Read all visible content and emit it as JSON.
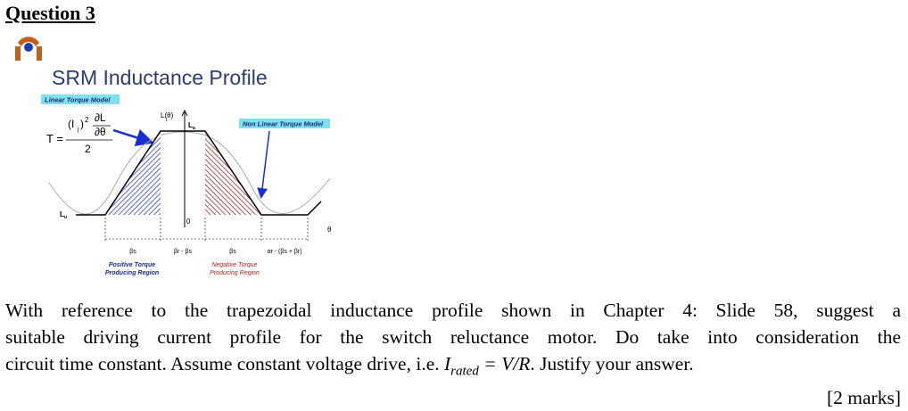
{
  "header": {
    "title": "Question 3"
  },
  "slide": {
    "title": "SRM Inductance Profile",
    "linear_label": "Linear Torque Model",
    "nonlinear_label": "Non Linear Torque Model",
    "formula": {
      "lhs": "T =",
      "numerator_current": "(I",
      "current_sub": "j",
      "current_close": ")",
      "power": "2",
      "partial_top": "∂L",
      "partial_bottom": "∂θ",
      "denominator": "2"
    },
    "axis_label": "L(θ)",
    "axis_sub": "j",
    "la": "L",
    "la_sub": "a",
    "lu": "L",
    "lu_sub": "u",
    "origin": "0",
    "theta": "θ",
    "dims": [
      "βs",
      "βr - βs",
      "βs",
      "αr - (βs + βr)"
    ],
    "positive_region": [
      "Positive Torque",
      "Producing Region"
    ],
    "negative_region": [
      "Negative Torque",
      "Producing Region"
    ]
  },
  "question": {
    "lines": [
      "With reference to the trapezoidal inductance profile shown in Chapter 4: Slide 58, suggest a",
      "suitable driving current profile for the switch reluctance motor. Do take into consideration the"
    ],
    "line3_start": "circuit time constant. Assume constant voltage drive, i.e. ",
    "math_symbol": "I",
    "math_sub": "rated",
    "math_rest": " = V/R",
    "line3_end": ". Justify your answer.",
    "marks": "[2 marks]"
  }
}
